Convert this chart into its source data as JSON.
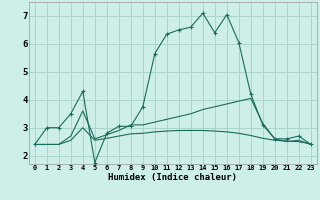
{
  "xlabel": "Humidex (Indice chaleur)",
  "bg_color": "#ceeee8",
  "grid_color": "#aad4cc",
  "line_color": "#1a6b5a",
  "x_ticks": [
    0,
    1,
    2,
    3,
    4,
    5,
    6,
    7,
    8,
    9,
    10,
    11,
    12,
    13,
    14,
    15,
    16,
    17,
    18,
    19,
    20,
    21,
    22,
    23
  ],
  "ylim": [
    1.7,
    7.5
  ],
  "xlim": [
    -0.5,
    23.5
  ],
  "yticks": [
    2,
    3,
    4,
    5,
    6,
    7
  ],
  "line1_x": [
    0,
    1,
    2,
    3,
    4,
    5,
    6,
    7,
    8,
    9,
    10,
    11,
    12,
    13,
    14,
    15,
    16,
    17,
    18,
    19,
    20,
    21,
    22,
    23
  ],
  "line1_y": [
    2.4,
    3.0,
    3.0,
    3.5,
    4.3,
    1.75,
    2.8,
    3.05,
    3.05,
    3.75,
    5.65,
    6.35,
    6.5,
    6.6,
    7.1,
    6.4,
    7.05,
    6.05,
    4.2,
    3.1,
    2.6,
    2.6,
    2.7,
    2.4
  ],
  "line2_x": [
    0,
    2,
    3,
    4,
    5,
    6,
    7,
    8,
    9,
    10,
    11,
    12,
    13,
    14,
    15,
    16,
    17,
    18,
    19,
    20,
    21,
    22,
    23
  ],
  "line2_y": [
    2.4,
    2.4,
    2.7,
    3.6,
    2.6,
    2.75,
    2.9,
    3.1,
    3.1,
    3.2,
    3.3,
    3.4,
    3.5,
    3.65,
    3.75,
    3.85,
    3.95,
    4.05,
    3.15,
    2.6,
    2.5,
    2.55,
    2.4
  ],
  "line3_x": [
    0,
    2,
    3,
    4,
    5,
    6,
    7,
    8,
    9,
    10,
    11,
    12,
    13,
    14,
    15,
    16,
    17,
    18,
    19,
    20,
    21,
    22,
    23
  ],
  "line3_y": [
    2.4,
    2.4,
    2.55,
    3.0,
    2.55,
    2.62,
    2.7,
    2.78,
    2.8,
    2.85,
    2.88,
    2.9,
    2.9,
    2.9,
    2.88,
    2.85,
    2.8,
    2.72,
    2.62,
    2.55,
    2.52,
    2.5,
    2.42
  ]
}
